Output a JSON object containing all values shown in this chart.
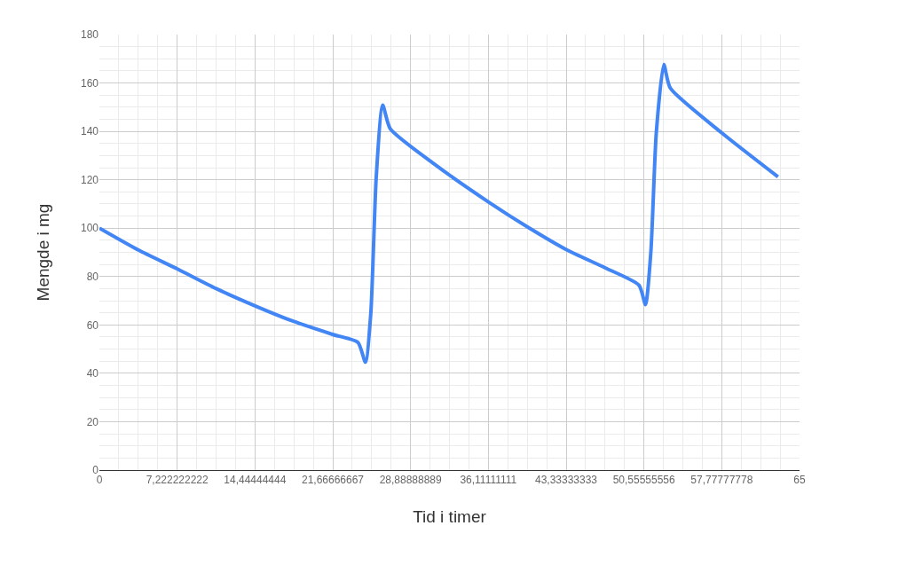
{
  "chart_data": {
    "type": "line",
    "xlabel": "Tid i timer",
    "ylabel": "Mengde i mg",
    "x": [
      0,
      3.6,
      7.25,
      10.8,
      14.5,
      18,
      21.7,
      24,
      24.7,
      25.2,
      25.7,
      26.3,
      27.0,
      31,
      36.2,
      40,
      43.4,
      47,
      50.1,
      50.7,
      51.2,
      51.7,
      52.4,
      53.0,
      57.8,
      63.0
    ],
    "series": [
      {
        "color": "#4285f4",
        "values": [
          100,
          91,
          83.1,
          75.1,
          67.8,
          61.5,
          56,
          52.8,
          44.6,
          64.9,
          121,
          150.9,
          141.1,
          126.8,
          110.6,
          99.8,
          91.0,
          83.5,
          76.4,
          68.4,
          90.4,
          139.3,
          167.6,
          157.9,
          139.3,
          121.2
        ]
      }
    ],
    "xlim": [
      0,
      65
    ],
    "xticks": [
      0,
      {
        "value": 7.222222222,
        "label": "7,222222222"
      },
      {
        "value": 14.44444444,
        "label": "14,44444444"
      },
      {
        "value": 21.66666667,
        "label": "21,66666667"
      },
      {
        "value": 28.88888889,
        "label": "28,88888889"
      },
      {
        "value": 36.11111111,
        "label": "36,11111111"
      },
      {
        "value": 43.33333333,
        "label": "43,33333333"
      },
      {
        "value": 50.55555556,
        "label": "50,55555556"
      },
      {
        "value": 57.77777778,
        "label": "57,77777778"
      },
      65
    ],
    "ylim": [
      0,
      180
    ],
    "yticks": [
      0,
      20,
      40,
      60,
      80,
      100,
      120,
      140,
      160,
      180
    ],
    "grid": true,
    "line_style": "solid",
    "marker": "none"
  }
}
